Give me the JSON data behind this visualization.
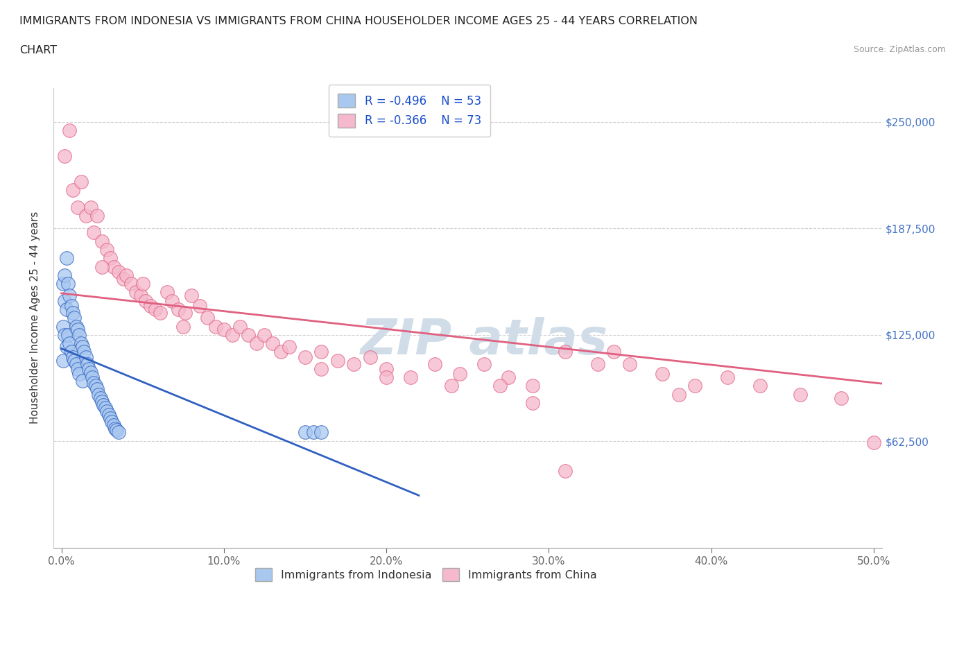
{
  "title_line1": "IMMIGRANTS FROM INDONESIA VS IMMIGRANTS FROM CHINA HOUSEHOLDER INCOME AGES 25 - 44 YEARS CORRELATION",
  "title_line2": "CHART",
  "source": "Source: ZipAtlas.com",
  "ylabel": "Householder Income Ages 25 - 44 years",
  "xlim": [
    -0.005,
    0.505
  ],
  "ylim": [
    0,
    270000
  ],
  "yticks": [
    0,
    62500,
    125000,
    187500,
    250000
  ],
  "ytick_labels": [
    "",
    "$62,500",
    "$125,000",
    "$187,500",
    "$250,000"
  ],
  "xticks": [
    0.0,
    0.1,
    0.2,
    0.3,
    0.4,
    0.5
  ],
  "xtick_labels": [
    "0.0%",
    "10.0%",
    "20.0%",
    "30.0%",
    "40.0%",
    "50.0%"
  ],
  "color_indonesia": "#a8c8f0",
  "color_china": "#f5b8cc",
  "line_color_indonesia": "#3060c0",
  "line_color_china": "#e06080",
  "R_indonesia": -0.496,
  "N_indonesia": 53,
  "R_china": -0.366,
  "N_china": 73,
  "indonesia_x": [
    0.001,
    0.001,
    0.001,
    0.002,
    0.002,
    0.002,
    0.003,
    0.003,
    0.003,
    0.004,
    0.004,
    0.005,
    0.005,
    0.006,
    0.006,
    0.007,
    0.007,
    0.008,
    0.008,
    0.009,
    0.009,
    0.01,
    0.01,
    0.011,
    0.011,
    0.012,
    0.013,
    0.013,
    0.014,
    0.015,
    0.016,
    0.017,
    0.018,
    0.019,
    0.02,
    0.021,
    0.022,
    0.023,
    0.024,
    0.025,
    0.026,
    0.027,
    0.028,
    0.029,
    0.03,
    0.031,
    0.032,
    0.033,
    0.034,
    0.035,
    0.15,
    0.155,
    0.16
  ],
  "indonesia_y": [
    155000,
    130000,
    110000,
    160000,
    145000,
    125000,
    170000,
    140000,
    118000,
    155000,
    125000,
    148000,
    120000,
    142000,
    115000,
    138000,
    112000,
    135000,
    110000,
    130000,
    108000,
    128000,
    105000,
    125000,
    102000,
    120000,
    118000,
    98000,
    115000,
    112000,
    108000,
    105000,
    103000,
    100000,
    97000,
    95000,
    93000,
    90000,
    88000,
    86000,
    84000,
    82000,
    80000,
    78000,
    76000,
    74000,
    72000,
    70000,
    69000,
    68000,
    68000,
    68000,
    68000
  ],
  "china_x": [
    0.002,
    0.005,
    0.007,
    0.01,
    0.012,
    0.015,
    0.018,
    0.02,
    0.022,
    0.025,
    0.028,
    0.03,
    0.032,
    0.035,
    0.038,
    0.04,
    0.043,
    0.046,
    0.049,
    0.052,
    0.055,
    0.058,
    0.061,
    0.065,
    0.068,
    0.072,
    0.076,
    0.08,
    0.085,
    0.09,
    0.095,
    0.1,
    0.105,
    0.11,
    0.115,
    0.12,
    0.125,
    0.13,
    0.135,
    0.14,
    0.15,
    0.16,
    0.17,
    0.18,
    0.19,
    0.2,
    0.215,
    0.23,
    0.245,
    0.26,
    0.275,
    0.29,
    0.31,
    0.33,
    0.35,
    0.37,
    0.39,
    0.41,
    0.43,
    0.455,
    0.48,
    0.5,
    0.34,
    0.38,
    0.27,
    0.31,
    0.16,
    0.2,
    0.24,
    0.29,
    0.05,
    0.075,
    0.025
  ],
  "china_y": [
    230000,
    245000,
    210000,
    200000,
    215000,
    195000,
    200000,
    185000,
    195000,
    180000,
    175000,
    170000,
    165000,
    162000,
    158000,
    160000,
    155000,
    150000,
    148000,
    145000,
    142000,
    140000,
    138000,
    150000,
    145000,
    140000,
    138000,
    148000,
    142000,
    135000,
    130000,
    128000,
    125000,
    130000,
    125000,
    120000,
    125000,
    120000,
    115000,
    118000,
    112000,
    115000,
    110000,
    108000,
    112000,
    105000,
    100000,
    108000,
    102000,
    108000,
    100000,
    95000,
    115000,
    108000,
    108000,
    102000,
    95000,
    100000,
    95000,
    90000,
    88000,
    62000,
    115000,
    90000,
    95000,
    45000,
    105000,
    100000,
    95000,
    85000,
    155000,
    130000,
    165000
  ]
}
